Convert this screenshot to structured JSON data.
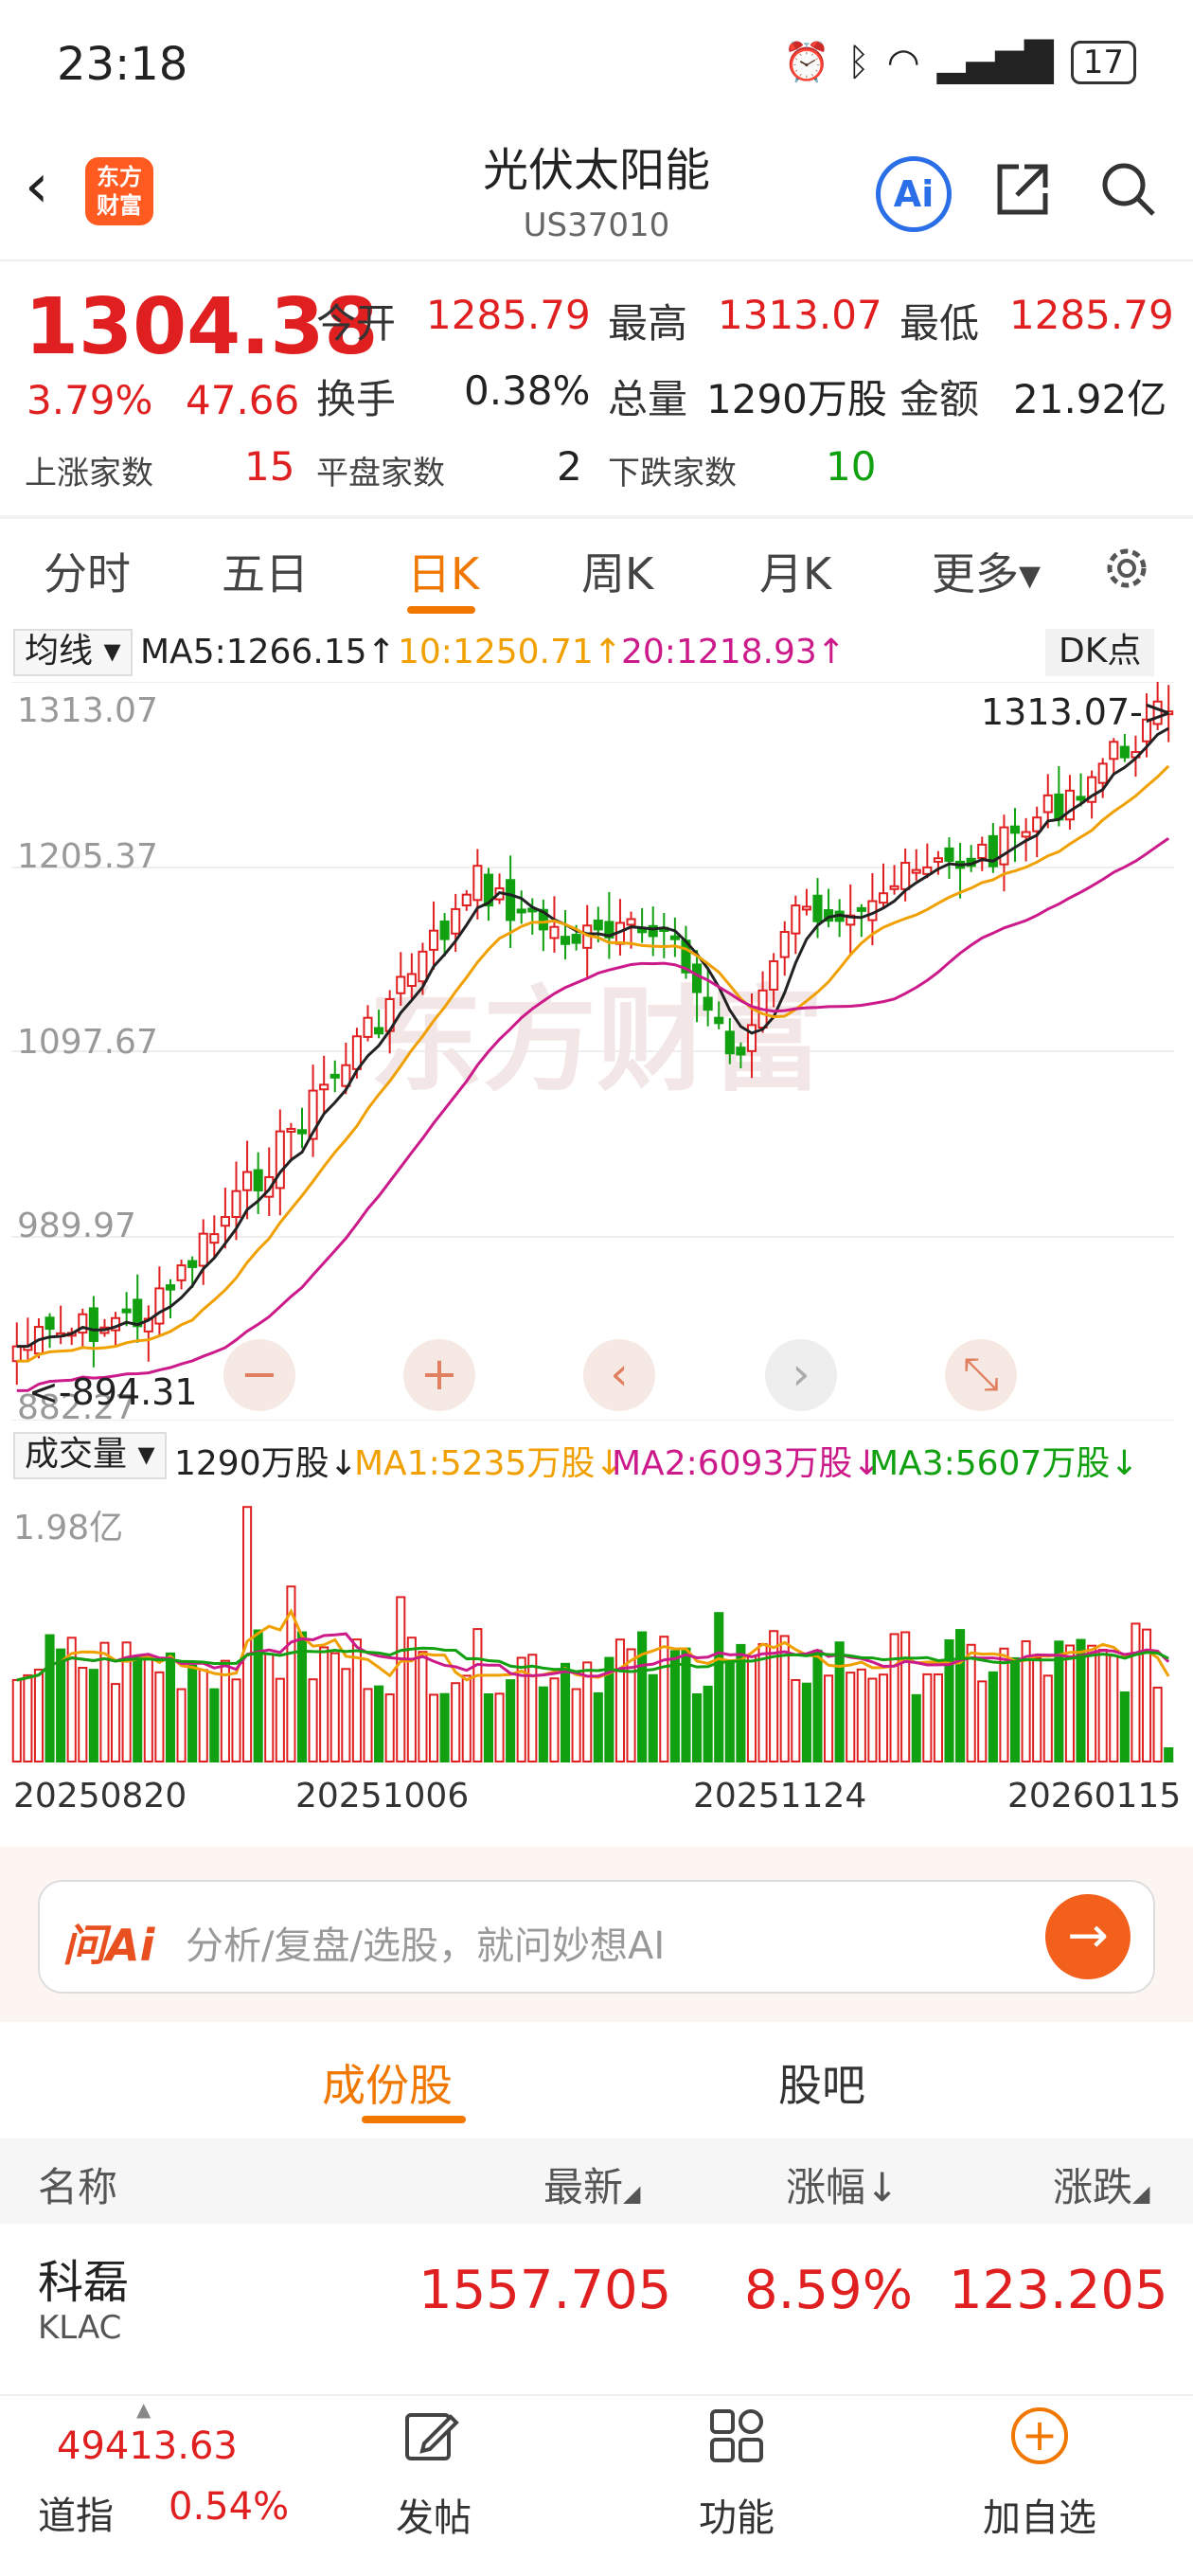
{
  "status": {
    "time": "23:18",
    "battery": "17"
  },
  "header": {
    "logo_line1": "东方",
    "logo_line2": "财富",
    "title": "光伏太阳能",
    "code": "US37010",
    "ai_label": "Ai"
  },
  "quote": {
    "price": "1304.38",
    "change_pct": "3.79%",
    "change_val": "47.66",
    "open_label": "今开",
    "open": "1285.79",
    "high_label": "最高",
    "high": "1313.07",
    "low_label": "最低",
    "low": "1285.79",
    "turnover_label": "换手",
    "turnover": "0.38%",
    "volume_label": "总量",
    "volume": "1290万股",
    "amount_label": "金额",
    "amount": "21.92亿",
    "up_label": "上涨家数",
    "up_count": "15",
    "flat_label": "平盘家数",
    "flat_count": "2",
    "down_label": "下跌家数",
    "down_count": "10"
  },
  "ktabs": {
    "t1": "分时",
    "t2": "五日",
    "t3": "日K",
    "t4": "周K",
    "t5": "月K",
    "t6": "更多▾"
  },
  "chart": {
    "ma_select": "均线",
    "ma5": "MA5:1266.15↑",
    "ma10": "10:1250.71↑",
    "ma20": "20:1218.93↑",
    "dk": "DK点",
    "y1": "1313.07",
    "y2": "1205.37",
    "y3": "1097.67",
    "y4": "989.97",
    "y5": "882.27",
    "max_marker": "1313.07->",
    "min_marker": "<-894.31",
    "watermark": "东方财富",
    "vol_select": "成交量",
    "vol_now": "1290万股↓",
    "vol_ma1": "MA1:5235万股↓",
    "vol_ma2": "MA2:6093万股↓",
    "vol_ma3": "MA3:5607万股↓",
    "vol_max": "1.98亿",
    "date1": "20250820",
    "date2": "20251006",
    "date3": "20251124",
    "date4": "20260115"
  },
  "chart_data": {
    "type": "candlestick",
    "ylim": [
      882.27,
      1313.07
    ],
    "y_ticks": [
      1313.07,
      1205.37,
      1097.67,
      989.97,
      882.27
    ],
    "x_ticks": [
      "20250820",
      "20251006",
      "20251124",
      "20260115"
    ],
    "annotations": [
      "1313.07->",
      "<-894.31"
    ],
    "moving_averages": [
      {
        "name": "MA5",
        "value": 1266.15,
        "color": "#222222"
      },
      {
        "name": "MA10",
        "value": 1250.71,
        "color": "#f0a000"
      },
      {
        "name": "MA20",
        "value": 1218.93,
        "color": "#cc1a8a"
      }
    ],
    "volume": {
      "max_label": "1.98亿",
      "latest": "1290万股",
      "ma1": "5235万股",
      "ma2": "6093万股",
      "ma3": "5607万股"
    }
  },
  "ai": {
    "logo": "问Ai",
    "placeholder": "分析/复盘/选股，就问妙想AI"
  },
  "sections": {
    "tab1": "成份股",
    "tab2": "股吧"
  },
  "table": {
    "col_name": "名称",
    "col_latest": "最新",
    "col_pct": "涨幅↓",
    "col_change": "涨跌",
    "rows": [
      {
        "name": "科磊",
        "code": "KLAC",
        "latest": "1557.705",
        "pct": "8.59%",
        "change": "123.205"
      }
    ]
  },
  "bottom": {
    "index_value": "49413.63",
    "index_name": "道指",
    "index_pct": "0.54%",
    "post": "发帖",
    "func": "功能",
    "add": "加自选"
  },
  "colors": {
    "up": "#e02020",
    "down": "#10a010",
    "accent": "#f07800"
  }
}
